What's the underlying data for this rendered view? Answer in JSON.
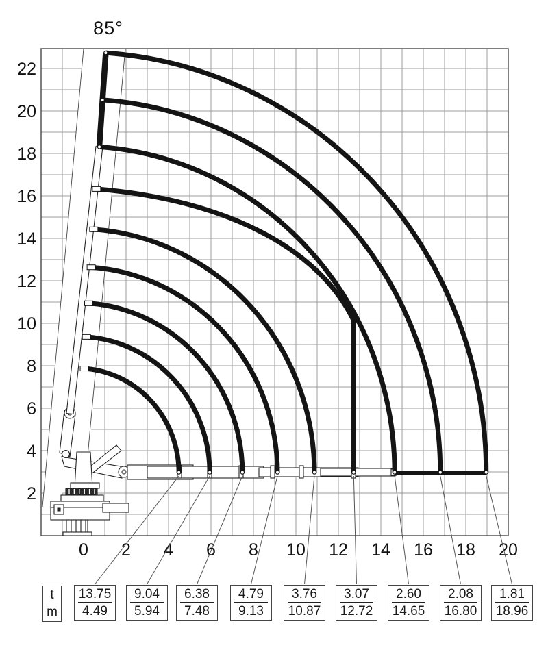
{
  "chart": {
    "angle_label": "85°",
    "x_axis": {
      "ticks": [
        0,
        2,
        4,
        6,
        8,
        10,
        12,
        14,
        16,
        18,
        20
      ],
      "min_m": -2,
      "max_m": 20
    },
    "y_axis": {
      "ticks": [
        2,
        4,
        6,
        8,
        10,
        12,
        14,
        16,
        18,
        20,
        22
      ],
      "min_m": 0,
      "max_m": 22.9
    },
    "grid_step_m": 1,
    "line_color": "#141414",
    "grid_color": "#9e9e9e"
  },
  "capacity_table": {
    "header": {
      "top": "t",
      "bottom": "m"
    },
    "columns": [
      {
        "t": "13.75",
        "m": "4.49"
      },
      {
        "t": "9.04",
        "m": "5.94"
      },
      {
        "t": "6.38",
        "m": "7.48"
      },
      {
        "t": "4.79",
        "m": "9.13"
      },
      {
        "t": "3.76",
        "m": "10.87"
      },
      {
        "t": "3.07",
        "m": "12.72"
      },
      {
        "t": "2.60",
        "m": "14.65"
      },
      {
        "t": "2.08",
        "m": "16.80"
      },
      {
        "t": "1.81",
        "m": "18.96"
      }
    ]
  },
  "chart_data": {
    "type": "crane-load-diagram",
    "boom_angle_deg": 85,
    "envelopes": [
      {
        "load_t": 13.75,
        "reach_m": 4.49
      },
      {
        "load_t": 9.04,
        "reach_m": 5.94
      },
      {
        "load_t": 6.38,
        "reach_m": 7.48
      },
      {
        "load_t": 4.79,
        "reach_m": 9.13
      },
      {
        "load_t": 3.76,
        "reach_m": 10.87
      },
      {
        "load_t": 3.07,
        "reach_m": 12.72,
        "boundary": "vertical-limit"
      },
      {
        "load_t": 2.6,
        "reach_m": 14.65
      },
      {
        "load_t": 2.08,
        "reach_m": 16.8
      },
      {
        "load_t": 1.81,
        "reach_m": 18.96
      }
    ],
    "x_range_m": [
      -2,
      20
    ],
    "y_range_m": [
      0,
      22.9
    ],
    "grid": "on",
    "units": {
      "load": "t",
      "reach": "m"
    }
  }
}
